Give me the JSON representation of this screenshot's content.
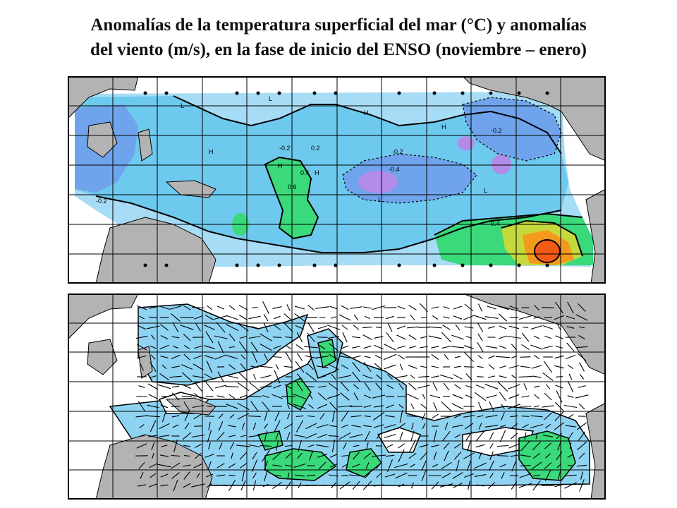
{
  "title": {
    "line1": "Anomalías de la temperatura superficial del mar (°C) y anomalías",
    "line2": "del viento (m/s), en la fase de inicio del ENSO (noviembre – enero)"
  },
  "colors": {
    "land": "#b3b3b3",
    "grid": "#000000",
    "sst_neg_light": "#a6dcf5",
    "sst_neg_mid": "#6ec9ee",
    "sst_neg_strong": "#6fa4ec",
    "sst_neg_purple": "#b28ce8",
    "sst_pos_green": "#3ad97a",
    "sst_pos_yellow": "#c6d93a",
    "sst_pos_orange": "#f39a1c",
    "sst_pos_red": "#f05a14",
    "wind_blue": "#8fd3f2",
    "wind_green": "#3ad97a"
  },
  "panels": {
    "sst": {
      "labels": [
        "-0.2",
        "-0.2",
        "-0.4",
        "-0.2",
        "0.2",
        "0.6",
        "0.4",
        "-0.2",
        "0.4"
      ],
      "marks": [
        "H",
        "H",
        "H",
        "H",
        "H",
        "L",
        "L",
        "L",
        "L"
      ]
    },
    "wind": {
      "marks": []
    }
  }
}
